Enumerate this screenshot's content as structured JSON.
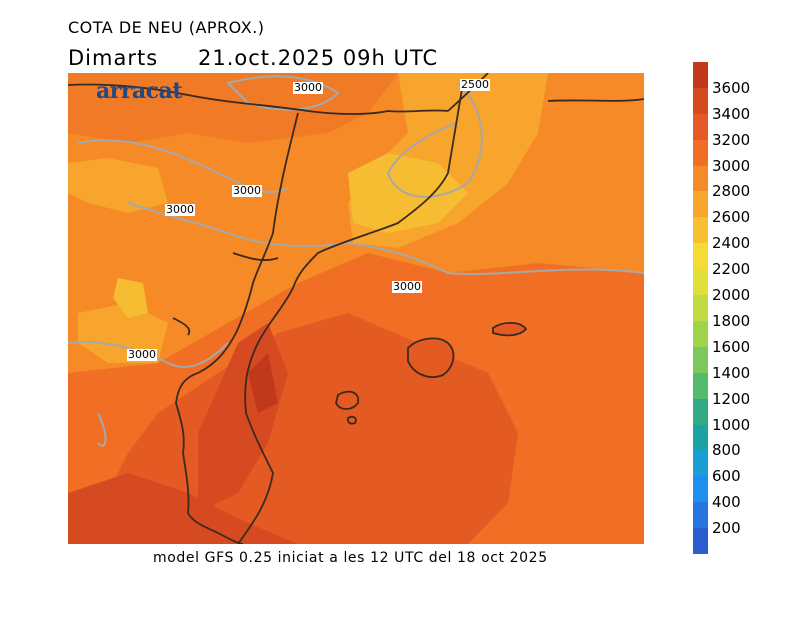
{
  "header": {
    "title": "COTA DE NEU (APROX.)",
    "day": "Dimarts",
    "datetime": "21.oct.2025 09h UTC"
  },
  "footer": {
    "model_text": "model GFS 0.25 iniciat a les 12 UTC del 18 oct 2025"
  },
  "logo": {
    "text": "arracat"
  },
  "map": {
    "contour_labels": [
      {
        "text": "3000",
        "id": "north"
      },
      {
        "text": "2500",
        "id": "northeast"
      },
      {
        "text": "3000",
        "id": "center-north"
      },
      {
        "text": "3000",
        "id": "west"
      },
      {
        "text": "3000",
        "id": "east"
      },
      {
        "text": "3000",
        "id": "southwest"
      }
    ]
  },
  "legend": {
    "colors": [
      "#c0391c",
      "#d64a22",
      "#e85a25",
      "#f06f25",
      "#f58a26",
      "#f7a52c",
      "#f7c030",
      "#f4db35",
      "#dfe03a",
      "#c2db40",
      "#9fd44a",
      "#7cc95a",
      "#55bb6c",
      "#31ab85",
      "#1ba3a3",
      "#1a9ed4",
      "#1e8ff0",
      "#2574e0",
      "#2b5fd0"
    ],
    "labels": [
      "3600",
      "3400",
      "3200",
      "3000",
      "2800",
      "2600",
      "2400",
      "2200",
      "2000",
      "1800",
      "1600",
      "1400",
      "1200",
      "1000",
      "800",
      "600",
      "400",
      "200"
    ]
  }
}
